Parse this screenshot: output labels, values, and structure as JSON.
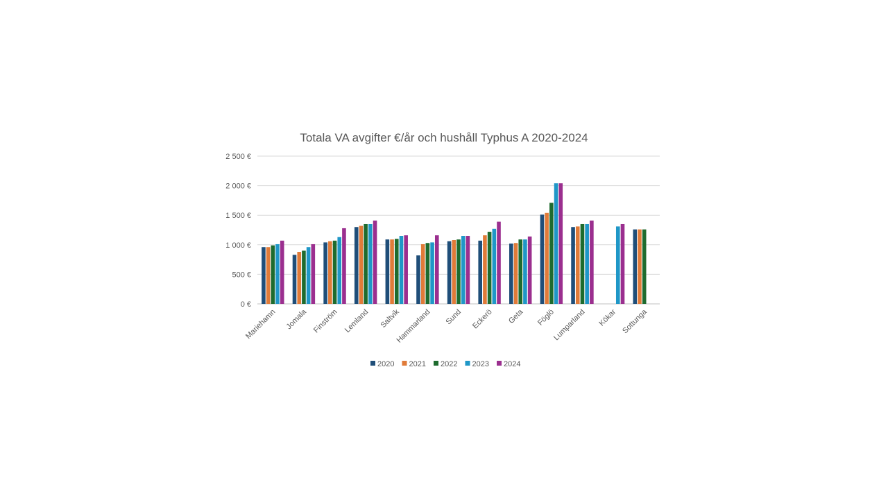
{
  "chart_data": {
    "type": "bar",
    "title": "Totala VA avgifter €/år och hushåll Typhus A 2020-2024",
    "xlabel": "",
    "ylabel": "",
    "ylim": [
      0,
      2500
    ],
    "yticks": [
      0,
      500,
      1000,
      1500,
      2000,
      2500
    ],
    "ytick_labels": [
      "0 €",
      "500 €",
      "1 000 €",
      "1 500 €",
      "2 000 €",
      "2 500 €"
    ],
    "grid": true,
    "legend_position": "bottom",
    "categories": [
      "Mariehamn",
      "Jomala",
      "Finström",
      "Lemland",
      "Saltvik",
      "Hammarland",
      "Sund",
      "Eckerö",
      "Geta",
      "Föglö",
      "Lumparland",
      "Kökar",
      "Sottunga"
    ],
    "series": [
      {
        "name": "2020",
        "color": "#1f4e79",
        "values": [
          960,
          830,
          1040,
          1300,
          1090,
          820,
          1060,
          1070,
          1020,
          1510,
          1300,
          null,
          1260
        ]
      },
      {
        "name": "2021",
        "color": "#e07b39",
        "values": [
          960,
          880,
          1060,
          1320,
          1090,
          1010,
          1080,
          1160,
          1030,
          1540,
          1310,
          null,
          1260
        ]
      },
      {
        "name": "2022",
        "color": "#1e6b2e",
        "values": [
          990,
          900,
          1070,
          1350,
          1100,
          1030,
          1090,
          1220,
          1090,
          1710,
          1350,
          null,
          1260
        ]
      },
      {
        "name": "2023",
        "color": "#1f97c7",
        "values": [
          1010,
          960,
          1130,
          1350,
          1150,
          1040,
          1150,
          1270,
          1090,
          2040,
          1350,
          1310,
          null
        ]
      },
      {
        "name": "2024",
        "color": "#9b2f8f",
        "values": [
          1070,
          1010,
          1280,
          1410,
          1160,
          1160,
          1150,
          1390,
          1140,
          2040,
          1410,
          1350,
          null
        ]
      }
    ]
  }
}
